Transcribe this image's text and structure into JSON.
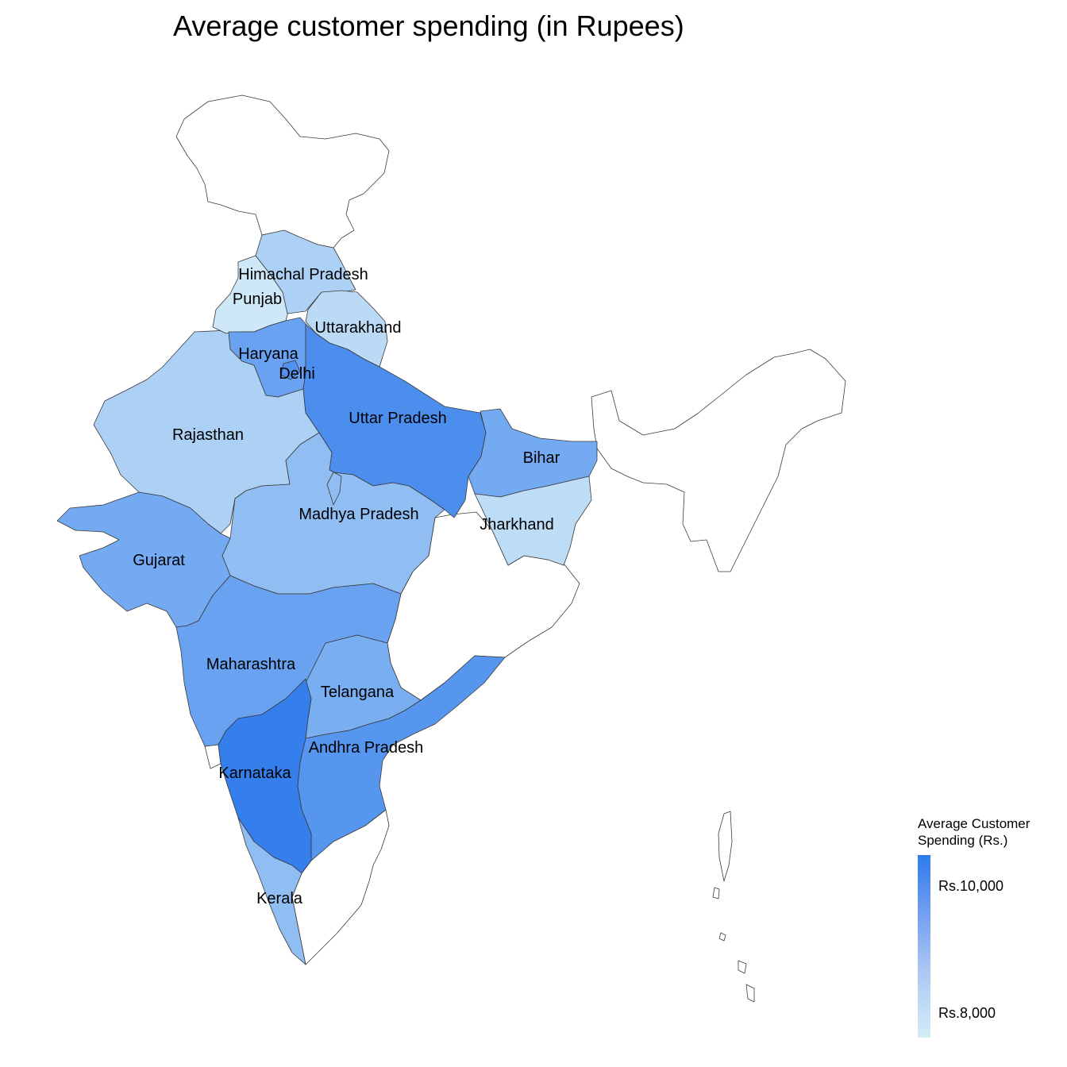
{
  "chart_data": {
    "type": "choropleth",
    "title": "Average customer spending (in Rupees)",
    "legend": {
      "title": [
        "Average Customer",
        "Spending (Rs.)"
      ],
      "placement": "right-bottom",
      "ticks": [
        {
          "label": "Rs.10,000",
          "value": 10000
        },
        {
          "label": "Rs.8,000",
          "value": 8000
        }
      ],
      "range": [
        7600,
        10500
      ],
      "low_color": "#d4ecf7",
      "high_color": "#2f7bec"
    },
    "regions": [
      {
        "id": "himachal-pradesh",
        "name": "Himachal Pradesh",
        "value": 8300
      },
      {
        "id": "punjab",
        "name": "Punjab",
        "value": 7700
      },
      {
        "id": "uttarakhand",
        "name": "Uttarakhand",
        "value": 8050
      },
      {
        "id": "haryana",
        "name": "Haryana",
        "value": 9500
      },
      {
        "id": "delhi",
        "name": "Delhi",
        "value": 9900
      },
      {
        "id": "rajasthan",
        "name": "Rajasthan",
        "value": 8300
      },
      {
        "id": "uttar-pradesh",
        "name": "Uttar Pradesh",
        "value": 10000
      },
      {
        "id": "bihar",
        "name": "Bihar",
        "value": 9300
      },
      {
        "id": "jharkhand",
        "name": "Jharkhand",
        "value": 8000
      },
      {
        "id": "madhya-pradesh",
        "name": "Madhya Pradesh",
        "value": 8800
      },
      {
        "id": "gujarat",
        "name": "Gujarat",
        "value": 9300
      },
      {
        "id": "maharashtra",
        "name": "Maharashtra",
        "value": 9500
      },
      {
        "id": "telangana",
        "name": "Telangana",
        "value": 9200
      },
      {
        "id": "andhra-pradesh",
        "name": "Andhra Pradesh",
        "value": 9800
      },
      {
        "id": "karnataka",
        "name": "Karnataka",
        "value": 10400
      },
      {
        "id": "kerala",
        "name": "Kerala",
        "value": 8800
      }
    ]
  }
}
